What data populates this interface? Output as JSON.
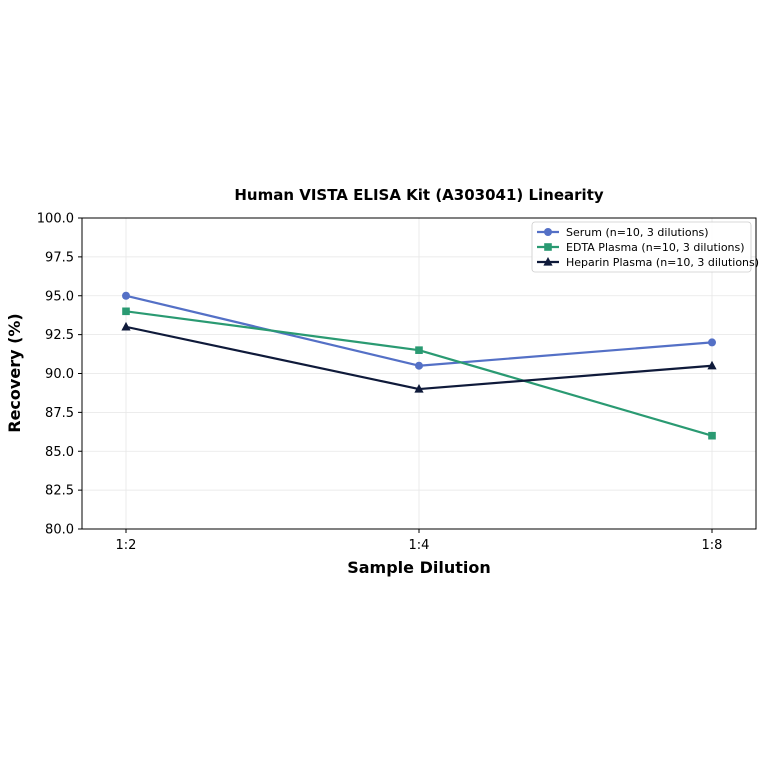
{
  "chart_data": {
    "type": "line",
    "title": "Human VISTA ELISA Kit (A303041) Linearity",
    "xlabel": "Sample Dilution",
    "ylabel": "Recovery (%)",
    "categories": [
      "1:2",
      "1:4",
      "1:8"
    ],
    "ylim": [
      80.0,
      100.0
    ],
    "yticks": [
      "80.0",
      "82.5",
      "85.0",
      "87.5",
      "90.0",
      "92.5",
      "95.0",
      "97.5",
      "100.0"
    ],
    "grid": true,
    "legend_position": "top-right",
    "series": [
      {
        "name": "Serum (n=10, 3 dilutions)",
        "values": [
          95.0,
          90.5,
          92.0
        ],
        "color": "#5470c6",
        "marker": "circle"
      },
      {
        "name": "EDTA Plasma (n=10, 3 dilutions)",
        "values": [
          94.0,
          91.5,
          86.0
        ],
        "color": "#2a9a72",
        "marker": "square"
      },
      {
        "name": "Heparin Plasma (n=10, 3 dilutions)",
        "values": [
          93.0,
          89.0,
          90.5
        ],
        "color": "#0f1a3a",
        "marker": "triangle"
      }
    ]
  }
}
